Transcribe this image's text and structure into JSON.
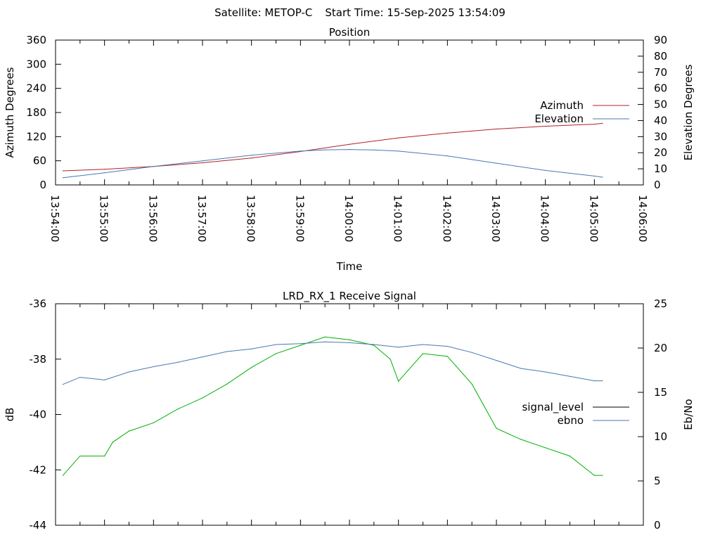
{
  "header": {
    "satellite": "Satellite: METOP-C",
    "start_time": "Start Time: 15-Sep-2025 13:54:09"
  },
  "chart_data": [
    {
      "type": "line",
      "title": "Position",
      "xlabel": "Time",
      "ylabel": "Azimuth Degrees",
      "y2label": "Elevation Degrees",
      "x_ticks": [
        "13:54:00",
        "13:55:00",
        "13:56:00",
        "13:57:00",
        "13:58:00",
        "13:59:00",
        "14:00:00",
        "14:01:00",
        "14:02:00",
        "14:03:00",
        "14:04:00",
        "14:05:00",
        "14:06:00"
      ],
      "xlim": [
        "13:54:00",
        "14:06:00"
      ],
      "ylim": [
        0,
        360
      ],
      "y_ticks": [
        0,
        60,
        120,
        180,
        240,
        300,
        360
      ],
      "y2lim": [
        0,
        90
      ],
      "y2_ticks": [
        0,
        10,
        20,
        30,
        40,
        50,
        60,
        70,
        80,
        90
      ],
      "legend_position": "right",
      "series": [
        {
          "name": "Azimuth",
          "axis": "left",
          "color": "#b22222",
          "x": [
            "13:54:09",
            "13:55:00",
            "13:56:00",
            "13:57:00",
            "13:58:00",
            "13:59:00",
            "14:00:00",
            "14:01:00",
            "14:02:00",
            "14:03:00",
            "14:04:00",
            "14:05:00",
            "14:05:10"
          ],
          "values": [
            35,
            39,
            46,
            55,
            67,
            83,
            101,
            117,
            129,
            139,
            146,
            151,
            153
          ]
        },
        {
          "name": "Elevation",
          "axis": "right",
          "color": "#4a78b0",
          "x": [
            "13:54:09",
            "13:55:00",
            "13:56:00",
            "13:57:00",
            "13:58:00",
            "13:59:00",
            "13:59:30",
            "14:00:00",
            "14:00:30",
            "14:01:00",
            "14:02:00",
            "14:03:00",
            "14:04:00",
            "14:05:00",
            "14:05:10"
          ],
          "values": [
            4.5,
            7.5,
            11.5,
            15,
            18.5,
            21,
            21.8,
            22,
            21.7,
            21,
            18,
            13.5,
            9,
            5.5,
            4.8
          ]
        }
      ]
    },
    {
      "type": "line",
      "title": "LRD_RX_1 Receive Signal",
      "xlabel": "",
      "ylabel": "dB",
      "y2label": "Eb/No",
      "xlim": [
        "13:54:00",
        "14:06:00"
      ],
      "ylim": [
        -44,
        -36
      ],
      "y_ticks": [
        -44,
        -42,
        -40,
        -38,
        -36
      ],
      "y2lim": [
        0,
        25
      ],
      "y2_ticks": [
        0,
        5,
        10,
        15,
        20,
        25
      ],
      "legend_position": "right",
      "series": [
        {
          "name": "signal_level",
          "axis": "left",
          "color": "#00b000",
          "legend_color": "#000000",
          "x": [
            "13:54:09",
            "13:54:30",
            "13:55:00",
            "13:55:10",
            "13:55:30",
            "13:56:00",
            "13:56:30",
            "13:57:00",
            "13:57:30",
            "13:58:00",
            "13:58:30",
            "13:59:00",
            "13:59:30",
            "14:00:00",
            "14:00:30",
            "14:00:50",
            "14:01:00",
            "14:01:30",
            "14:02:00",
            "14:02:30",
            "14:03:00",
            "14:03:30",
            "14:04:00",
            "14:04:30",
            "14:05:00",
            "14:05:10"
          ],
          "values": [
            -42.2,
            -41.5,
            -41.5,
            -41.0,
            -40.6,
            -40.3,
            -39.8,
            -39.4,
            -38.9,
            -38.3,
            -37.8,
            -37.5,
            -37.2,
            -37.3,
            -37.5,
            -38.0,
            -38.8,
            -37.8,
            -37.9,
            -38.9,
            -40.5,
            -40.9,
            -41.2,
            -41.5,
            -42.2,
            -42.2
          ]
        },
        {
          "name": "ebno",
          "axis": "right",
          "color": "#4a78b0",
          "x": [
            "13:54:09",
            "13:54:30",
            "13:55:00",
            "13:55:30",
            "13:56:00",
            "13:56:30",
            "13:57:00",
            "13:57:30",
            "13:58:00",
            "13:58:30",
            "13:59:00",
            "13:59:30",
            "14:00:00",
            "14:00:30",
            "14:01:00",
            "14:01:30",
            "14:02:00",
            "14:02:30",
            "14:03:00",
            "14:03:30",
            "14:04:00",
            "14:04:30",
            "14:05:00",
            "14:05:10"
          ],
          "values": [
            15.9,
            16.7,
            16.4,
            17.3,
            17.9,
            18.4,
            19.0,
            19.6,
            19.9,
            20.4,
            20.5,
            20.7,
            20.6,
            20.4,
            20.1,
            20.4,
            20.2,
            19.5,
            18.6,
            17.7,
            17.3,
            16.8,
            16.3,
            16.3
          ]
        }
      ]
    }
  ]
}
